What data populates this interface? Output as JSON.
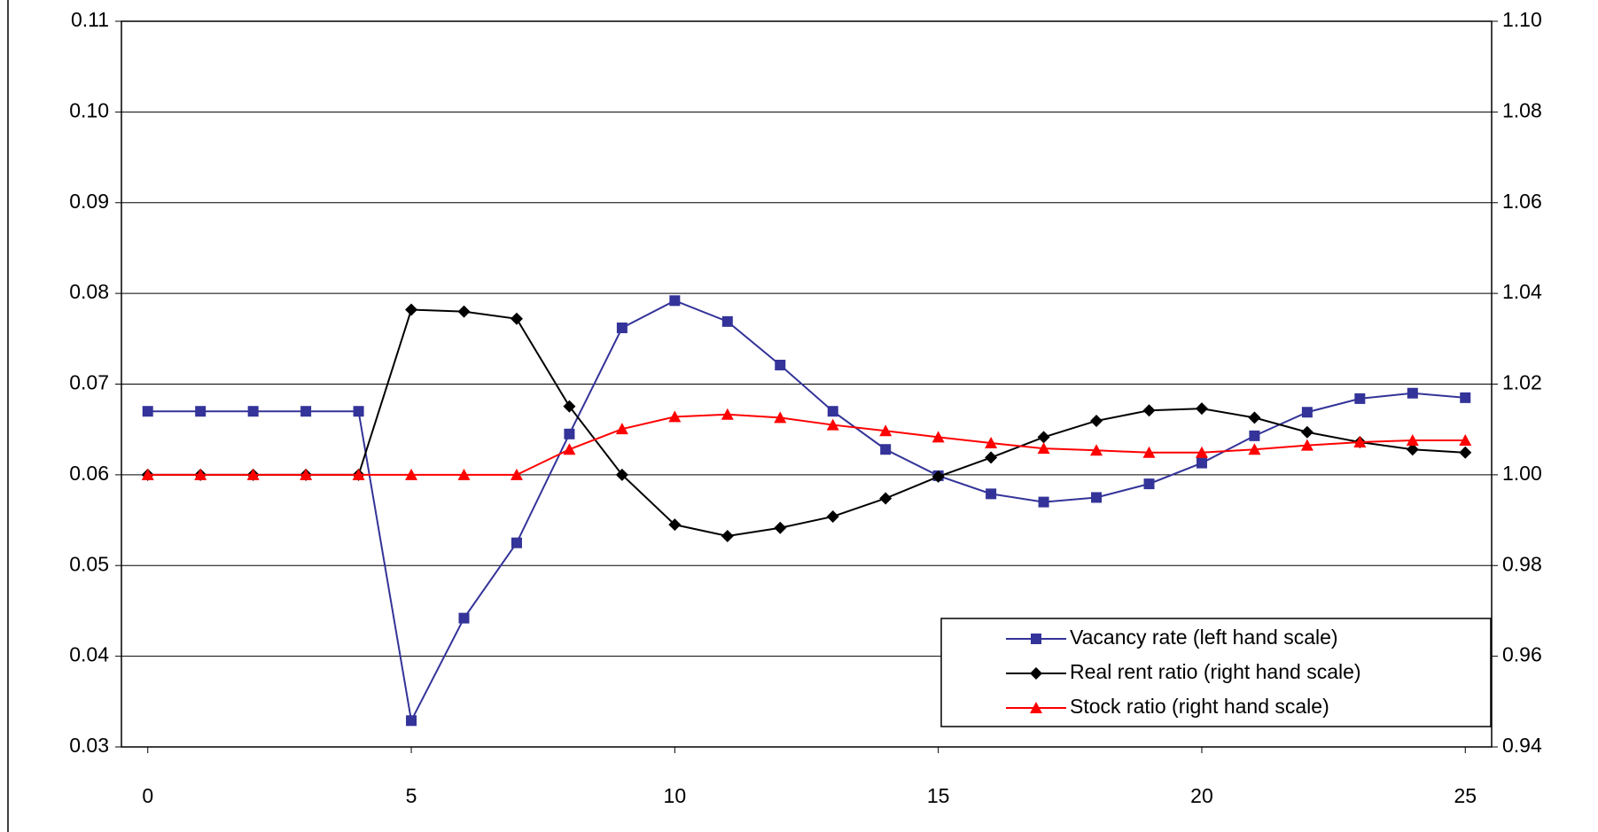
{
  "chart_data": {
    "type": "line",
    "x": [
      0,
      1,
      2,
      3,
      4,
      5,
      6,
      7,
      8,
      9,
      10,
      11,
      12,
      13,
      14,
      15,
      16,
      17,
      18,
      19,
      20,
      21,
      22,
      23,
      24,
      25
    ],
    "xlim": [
      -0.5,
      25.5
    ],
    "xticks": [
      0,
      5,
      10,
      15,
      20,
      25
    ],
    "ylim": [
      0.03,
      0.11
    ],
    "yticks": [
      0.03,
      0.04,
      0.05,
      0.06,
      0.07,
      0.08,
      0.09,
      {
        "value": 0.1,
        "label": "0.10"
      },
      0.11
    ],
    "y2lim": [
      0.94,
      1.1
    ],
    "y2ticks": [
      0.94,
      0.96,
      0.98,
      {
        "value": 1.0,
        "label": "1.00"
      },
      1.02,
      1.04,
      1.06,
      1.08,
      {
        "value": 1.1,
        "label": "1.10"
      }
    ],
    "grid": true,
    "legend": "lower right",
    "series": [
      {
        "name": "Vacancy rate (left hand scale)",
        "color": "#333399",
        "marker": "square",
        "values": [
          0.067,
          0.067,
          0.067,
          0.067,
          0.067,
          0.0329,
          0.0442,
          0.0525,
          0.0645,
          0.0762,
          0.0792,
          0.0769,
          0.0721,
          0.067,
          0.0628,
          0.0599,
          0.0579,
          0.057,
          0.0575,
          0.059,
          0.0613,
          0.0643,
          0.0669,
          0.0684,
          0.069,
          0.0685
        ]
      },
      {
        "name": "Real rent ratio (right hand scale)",
        "color": "#000000",
        "marker": "diamond",
        "axis": "y2",
        "values": [
          1.0,
          1.0,
          1.0,
          1.0,
          1.0,
          1.0364,
          1.036,
          1.0344,
          1.0151,
          1.0,
          0.989,
          0.9865,
          0.9883,
          0.9908,
          0.9948,
          0.9996,
          1.0038,
          1.0083,
          1.0119,
          1.0142,
          1.0146,
          1.0126,
          1.0094,
          1.0072,
          1.0056,
          1.0049
        ]
      },
      {
        "name": "Stock ratio (right hand scale)",
        "color": "#ff0000",
        "marker": "triangle",
        "axis": "y2",
        "values": [
          1.0,
          1.0,
          1.0,
          1.0,
          1.0,
          1.0,
          1.0,
          1.0,
          1.0056,
          1.0101,
          1.0128,
          1.0133,
          1.0126,
          1.011,
          1.0097,
          1.0083,
          1.007,
          1.0058,
          1.0054,
          1.0049,
          1.0049,
          1.0056,
          1.0065,
          1.0072,
          1.0076,
          1.0076
        ]
      }
    ]
  }
}
